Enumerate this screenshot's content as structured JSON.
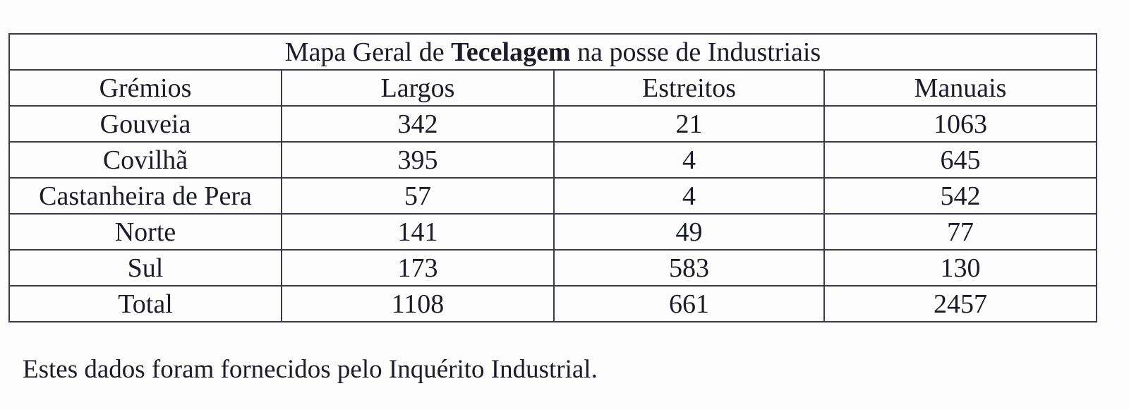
{
  "table": {
    "title": [
      "Mapa Geral de",
      "Tecelagem",
      "na posse de Industriais"
    ],
    "header": [
      "Grémios",
      "Largos",
      "Estreitos",
      "Manuais"
    ],
    "rows": [
      [
        "Gouveia",
        342,
        21,
        1063
      ],
      [
        "Covilhã",
        395,
        4,
        645
      ],
      [
        "Castanheira de Pera",
        57,
        4,
        542
      ],
      [
        "Norte",
        141,
        49,
        77
      ],
      [
        "Sul",
        173,
        583,
        130
      ],
      [
        "Total",
        1108,
        661,
        2457
      ]
    ]
  },
  "note": "Estes dados foram fornecidos pelo Inquérito Industrial."
}
